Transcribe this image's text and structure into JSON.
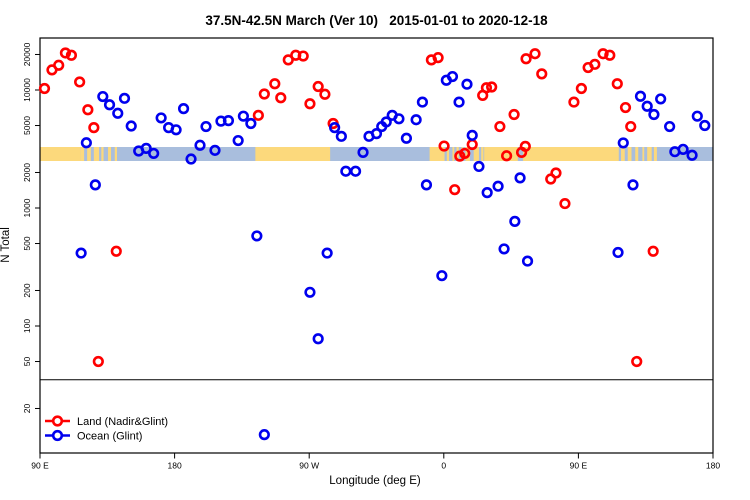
{
  "title": "37.5N-42.5N March (Ver 10)   2015-01-01 to 2020-12-18",
  "chart_data": {
    "type": "scatter",
    "title": "37.5N-42.5N March (Ver 10)   2015-01-01 to 2020-12-18",
    "xlabel": "Longitude (deg E)",
    "ylabel": "N Total",
    "grid": false,
    "x_axis": {
      "min": -270,
      "max": 180,
      "ticks": [
        {
          "value": -270,
          "label": "90 E"
        },
        {
          "value": -180,
          "label": "180"
        },
        {
          "value": -90,
          "label": "90 W"
        },
        {
          "value": 0,
          "label": "0"
        },
        {
          "value": 90,
          "label": "90 E"
        },
        {
          "value": 180,
          "label": "180"
        }
      ]
    },
    "y_axis": {
      "scale": "log",
      "min": 8,
      "max": 27000,
      "ticks": [
        20,
        50,
        100,
        200,
        500,
        1000,
        2000,
        5000,
        10000,
        20000
      ]
    },
    "threshold_line": {
      "value": 35
    },
    "legend": {
      "position": "bottom-left"
    },
    "map_strip": {
      "comment": "land/ocean band at ~40N latitude drawn across plot",
      "value_center": 3200,
      "ocean_color": "#a9bedd",
      "land_color": "#fcd97c",
      "land_segments": [
        [
          -270,
          -243
        ],
        [
          -126,
          -76
        ],
        [
          -9.5,
          0.5
        ],
        [
          27,
          117
        ],
        [
          -243,
          -240.5
        ],
        [
          -238.5,
          -236
        ],
        [
          -234,
          -230.5
        ],
        [
          -229,
          -227.5
        ],
        [
          -224.5,
          -222.5
        ],
        [
          -220,
          -218.5
        ],
        [
          2,
          3.5
        ],
        [
          5.8,
          7
        ],
        [
          8.5,
          10
        ],
        [
          11.8,
          12.8
        ],
        [
          14.5,
          17.5
        ],
        [
          20,
          23.5
        ],
        [
          25,
          26.5
        ],
        [
          118.5,
          121
        ],
        [
          123,
          125.5
        ],
        [
          128,
          130
        ],
        [
          132.8,
          134
        ],
        [
          136,
          139
        ],
        [
          140.5,
          142.5
        ]
      ],
      "ocean_patches": [
        [
          49.5,
          53
        ]
      ]
    },
    "series": [
      {
        "name": "Land (Nadir&Glint)",
        "color": "#ff0000",
        "points": [
          [
            -267,
            10300
          ],
          [
            -262,
            14800
          ],
          [
            -257.5,
            16200
          ],
          [
            -253,
            20600
          ],
          [
            -249,
            19700
          ],
          [
            -243.5,
            11700
          ],
          [
            -238,
            6800
          ],
          [
            -234,
            4800
          ],
          [
            -219,
            430
          ],
          [
            -231,
            50
          ],
          [
            -124,
            6100
          ],
          [
            -120,
            9250
          ],
          [
            -113,
            11300
          ],
          [
            -109,
            8600
          ],
          [
            -104,
            18000
          ],
          [
            -99,
            19700
          ],
          [
            -94,
            19400
          ],
          [
            -89.5,
            7650
          ],
          [
            -84,
            10700
          ],
          [
            -79.5,
            9200
          ],
          [
            -74,
            5200
          ],
          [
            -8.3,
            18000
          ],
          [
            -3.8,
            18800
          ],
          [
            0.2,
            3350
          ],
          [
            7.3,
            1430
          ],
          [
            10.7,
            2750
          ],
          [
            14,
            2900
          ],
          [
            19,
            3450
          ],
          [
            26,
            9000
          ],
          [
            28.5,
            10450
          ],
          [
            32,
            10600
          ],
          [
            37.5,
            4900
          ],
          [
            42,
            2770
          ],
          [
            47,
            6200
          ],
          [
            52,
            2960
          ],
          [
            54.5,
            3330
          ],
          [
            55,
            18400
          ],
          [
            61,
            20300
          ],
          [
            65.5,
            13700
          ],
          [
            71.5,
            1760
          ],
          [
            75,
            1980
          ],
          [
            81,
            1090
          ],
          [
            87,
            7900
          ],
          [
            92,
            10300
          ],
          [
            96.5,
            15500
          ],
          [
            101,
            16500
          ],
          [
            106.5,
            20300
          ],
          [
            111,
            19700
          ],
          [
            116,
            11300
          ],
          [
            121.5,
            7100
          ],
          [
            125,
            4900
          ],
          [
            129,
            50
          ],
          [
            140,
            430
          ]
        ]
      },
      {
        "name": "Ocean (Glint)",
        "color": "#0000ee",
        "points": [
          [
            -242.5,
            415
          ],
          [
            -239,
            3570
          ],
          [
            -233,
            1570
          ],
          [
            -228,
            8800
          ],
          [
            -223.5,
            7500
          ],
          [
            -218,
            6350
          ],
          [
            -213.5,
            8500
          ],
          [
            -209,
            4950
          ],
          [
            -204,
            3040
          ],
          [
            -199,
            3200
          ],
          [
            -194,
            2900
          ],
          [
            -189,
            5800
          ],
          [
            -184,
            4800
          ],
          [
            -179,
            4600
          ],
          [
            -174,
            6950
          ],
          [
            -169,
            2600
          ],
          [
            -163,
            3400
          ],
          [
            -159,
            4900
          ],
          [
            -153,
            3080
          ],
          [
            -149,
            5450
          ],
          [
            -144,
            5500
          ],
          [
            -137.5,
            3730
          ],
          [
            -134,
            6000
          ],
          [
            -129,
            5200
          ],
          [
            -125,
            580
          ],
          [
            -120,
            12
          ],
          [
            -89.5,
            193
          ],
          [
            -84,
            78
          ],
          [
            -78,
            415
          ],
          [
            -73,
            4800
          ],
          [
            -68.5,
            4050
          ],
          [
            -65.5,
            2050
          ],
          [
            -59,
            2050
          ],
          [
            -54,
            2960
          ],
          [
            -50,
            4050
          ],
          [
            -45,
            4270
          ],
          [
            -41.5,
            4900
          ],
          [
            -38.5,
            5360
          ],
          [
            -34.5,
            6100
          ],
          [
            -30,
            5700
          ],
          [
            -25,
            3900
          ],
          [
            -18.5,
            5600
          ],
          [
            -14.3,
            7900
          ],
          [
            -11.6,
            1570
          ],
          [
            -1.3,
            267
          ],
          [
            1.7,
            12100
          ],
          [
            5.8,
            13000
          ],
          [
            10.2,
            7900
          ],
          [
            15.5,
            11200
          ],
          [
            19,
            4130
          ],
          [
            23.5,
            2250
          ],
          [
            29,
            1350
          ],
          [
            36.3,
            1530
          ],
          [
            40.3,
            450
          ],
          [
            47.5,
            770
          ],
          [
            51,
            1800
          ],
          [
            56,
            355
          ],
          [
            116.5,
            420
          ],
          [
            120,
            3560
          ],
          [
            126.5,
            1570
          ],
          [
            131.5,
            8850
          ],
          [
            136,
            7280
          ],
          [
            140.5,
            6200
          ],
          [
            145,
            8400
          ],
          [
            151,
            4900
          ],
          [
            154.5,
            3000
          ],
          [
            160,
            3140
          ],
          [
            166,
            2800
          ],
          [
            169.5,
            6000
          ],
          [
            174.5,
            5000
          ]
        ]
      }
    ]
  }
}
